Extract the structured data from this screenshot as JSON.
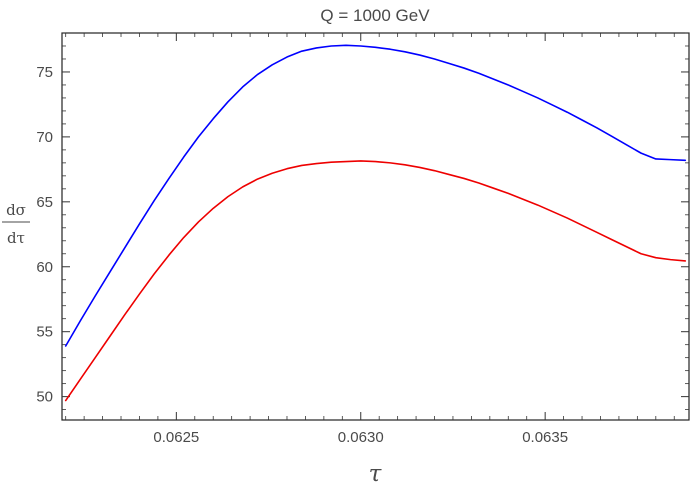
{
  "chart_data": {
    "type": "line",
    "title": "Q = 1000 GeV",
    "xlabel": "τ",
    "ylabel_numerator": "dσ",
    "ylabel_denominator": "dτ",
    "xlim": [
      0.06219,
      0.06389
    ],
    "ylim": [
      48.2,
      78.0
    ],
    "x_ticks": [
      {
        "value": 0.0625,
        "label": "0.0625"
      },
      {
        "value": 0.063,
        "label": "0.0630"
      },
      {
        "value": 0.0635,
        "label": "0.0635"
      }
    ],
    "y_ticks": [
      {
        "value": 50,
        "label": "50"
      },
      {
        "value": 55,
        "label": "55"
      },
      {
        "value": 60,
        "label": "60"
      },
      {
        "value": 65,
        "label": "65"
      },
      {
        "value": 70,
        "label": "70"
      },
      {
        "value": 75,
        "label": "75"
      }
    ],
    "frame_ticks": true,
    "grid": false,
    "series": [
      {
        "color": "#0000ff",
        "x": [
          0.0622,
          0.06224,
          0.06228,
          0.06232,
          0.06236,
          0.0624,
          0.06244,
          0.06248,
          0.06252,
          0.06256,
          0.0626,
          0.06264,
          0.06268,
          0.06272,
          0.06276,
          0.0628,
          0.06284,
          0.06288,
          0.06292,
          0.06296,
          0.063,
          0.06304,
          0.06308,
          0.06312,
          0.06316,
          0.0632,
          0.06324,
          0.06328,
          0.06332,
          0.06336,
          0.0634,
          0.06344,
          0.06348,
          0.06352,
          0.06356,
          0.0636,
          0.06364,
          0.06368,
          0.06372,
          0.06376,
          0.0638,
          0.06384,
          0.06388
        ],
        "y": [
          53.9,
          55.85,
          57.75,
          59.6,
          61.45,
          63.3,
          65.1,
          66.8,
          68.45,
          70.0,
          71.4,
          72.7,
          73.85,
          74.8,
          75.55,
          76.15,
          76.6,
          76.85,
          77.0,
          77.05,
          77.0,
          76.9,
          76.75,
          76.55,
          76.3,
          76.0,
          75.65,
          75.3,
          74.9,
          74.45,
          74.0,
          73.5,
          73.0,
          72.45,
          71.9,
          71.3,
          70.7,
          70.05,
          69.4,
          68.75,
          68.3,
          68.25,
          68.2
        ]
      },
      {
        "color": "#ee0000",
        "x": [
          0.0622,
          0.06224,
          0.06228,
          0.06232,
          0.06236,
          0.0624,
          0.06244,
          0.06248,
          0.06252,
          0.06256,
          0.0626,
          0.06264,
          0.06268,
          0.06272,
          0.06276,
          0.0628,
          0.06284,
          0.06288,
          0.06292,
          0.06296,
          0.063,
          0.06304,
          0.06308,
          0.06312,
          0.06316,
          0.0632,
          0.06324,
          0.06328,
          0.06332,
          0.06336,
          0.0634,
          0.06344,
          0.06348,
          0.06352,
          0.06356,
          0.0636,
          0.06364,
          0.06368,
          0.06372,
          0.06376,
          0.0638,
          0.06384,
          0.06388
        ],
        "y": [
          49.7,
          51.35,
          53.0,
          54.65,
          56.3,
          57.9,
          59.45,
          60.9,
          62.25,
          63.45,
          64.5,
          65.4,
          66.15,
          66.75,
          67.2,
          67.55,
          67.8,
          67.95,
          68.05,
          68.1,
          68.15,
          68.1,
          68.0,
          67.85,
          67.65,
          67.4,
          67.1,
          66.8,
          66.45,
          66.05,
          65.65,
          65.2,
          64.75,
          64.25,
          63.75,
          63.2,
          62.65,
          62.1,
          61.55,
          61.0,
          60.7,
          60.55,
          60.45
        ]
      }
    ]
  }
}
